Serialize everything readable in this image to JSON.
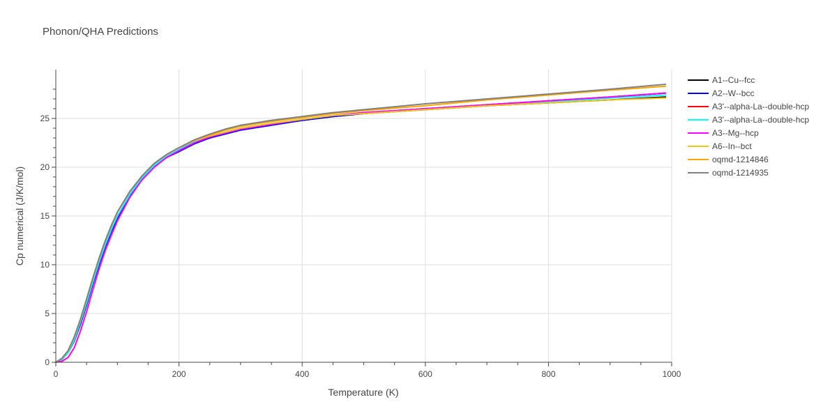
{
  "chart_data": {
    "type": "line",
    "title": "Phonon/QHA Predictions",
    "xlabel": "Temperature (K)",
    "ylabel": "Cp numerical (J/K/mol)",
    "xlim": [
      0,
      1000
    ],
    "ylim": [
      0,
      30
    ],
    "xticks": [
      0,
      200,
      400,
      600,
      800,
      1000
    ],
    "yticks": [
      0,
      5,
      10,
      15,
      20,
      25
    ],
    "xtick_labels": [
      "0",
      "200",
      "400",
      "600",
      "800",
      "1000"
    ],
    "ytick_labels": [
      "0",
      "5",
      "10",
      "15",
      "20",
      "25"
    ],
    "grid": true,
    "legend_position": "right",
    "x": [
      0,
      10,
      20,
      30,
      40,
      50,
      60,
      70,
      80,
      90,
      100,
      120,
      140,
      160,
      180,
      200,
      225,
      250,
      275,
      300,
      350,
      400,
      450,
      500,
      600,
      700,
      800,
      900,
      990
    ],
    "series": [
      {
        "name": "A1--Cu--fcc",
        "color": "#000000",
        "values": [
          0,
          0.3,
          1.0,
          2.2,
          3.9,
          5.9,
          8.0,
          10.0,
          11.8,
          13.4,
          14.8,
          17.1,
          18.8,
          20.1,
          21.0,
          21.7,
          22.5,
          23.0,
          23.5,
          23.9,
          24.4,
          24.8,
          25.2,
          25.5,
          25.9,
          26.3,
          26.6,
          26.9,
          27.2
        ]
      },
      {
        "name": "A2--W--bcc",
        "color": "#0000ff",
        "values": [
          0,
          0.3,
          1.0,
          2.2,
          3.9,
          5.9,
          8.0,
          10.0,
          11.8,
          13.4,
          14.8,
          17.1,
          18.8,
          20.1,
          21.0,
          21.6,
          22.4,
          23.0,
          23.4,
          23.8,
          24.3,
          24.8,
          25.2,
          25.5,
          26.0,
          26.4,
          26.8,
          27.2,
          27.6
        ]
      },
      {
        "name": "A3'--alpha-La--double-hcp",
        "color": "#ff0000",
        "values": [
          0,
          0.3,
          1.0,
          2.3,
          4.1,
          6.1,
          8.2,
          10.2,
          12.0,
          13.6,
          15.0,
          17.2,
          18.9,
          20.2,
          21.1,
          21.8,
          22.6,
          23.1,
          23.6,
          24.0,
          24.5,
          24.9,
          25.3,
          25.6,
          26.0,
          26.4,
          26.8,
          27.2,
          27.6
        ]
      },
      {
        "name": "A3'--alpha-La--double-hcp",
        "color": "#00ffff",
        "values": [
          0,
          0.3,
          1.0,
          2.3,
          4.1,
          6.1,
          8.2,
          10.2,
          12.0,
          13.6,
          15.0,
          17.2,
          18.9,
          20.2,
          21.1,
          21.8,
          22.6,
          23.1,
          23.6,
          24.0,
          24.5,
          24.9,
          25.3,
          25.6,
          26.0,
          26.4,
          26.7,
          27.1,
          27.4
        ]
      },
      {
        "name": "A3--Mg--hcp",
        "color": "#ff00ff",
        "values": [
          0,
          0.1,
          0.5,
          1.5,
          3.2,
          5.2,
          7.4,
          9.5,
          11.4,
          13.0,
          14.5,
          16.9,
          18.7,
          20.0,
          21.0,
          21.7,
          22.5,
          23.1,
          23.5,
          23.9,
          24.4,
          24.9,
          25.3,
          25.6,
          26.0,
          26.4,
          26.8,
          27.2,
          27.6
        ]
      },
      {
        "name": "A6--In--bct",
        "color": "#f0c419",
        "values": [
          0,
          0.4,
          1.2,
          2.6,
          4.4,
          6.5,
          8.6,
          10.6,
          12.4,
          14.0,
          15.4,
          17.5,
          19.1,
          20.4,
          21.3,
          22.0,
          22.7,
          23.2,
          23.6,
          24.0,
          24.5,
          24.9,
          25.3,
          25.5,
          25.9,
          26.3,
          26.6,
          26.9,
          27.1
        ]
      },
      {
        "name": "oqmd-1214846",
        "color": "#ffa500",
        "values": [
          0,
          0.4,
          1.2,
          2.6,
          4.4,
          6.5,
          8.6,
          10.6,
          12.4,
          14.0,
          15.4,
          17.5,
          19.1,
          20.4,
          21.3,
          22.0,
          22.8,
          23.3,
          23.8,
          24.2,
          24.7,
          25.1,
          25.5,
          25.8,
          26.3,
          26.9,
          27.4,
          27.9,
          28.3
        ]
      },
      {
        "name": "oqmd-1214935",
        "color": "#808080",
        "values": [
          0,
          0.4,
          1.2,
          2.6,
          4.4,
          6.5,
          8.6,
          10.6,
          12.4,
          14.0,
          15.4,
          17.5,
          19.1,
          20.4,
          21.3,
          22.0,
          22.8,
          23.4,
          23.9,
          24.3,
          24.8,
          25.2,
          25.6,
          25.9,
          26.5,
          27.0,
          27.5,
          28.0,
          28.5
        ]
      }
    ]
  }
}
